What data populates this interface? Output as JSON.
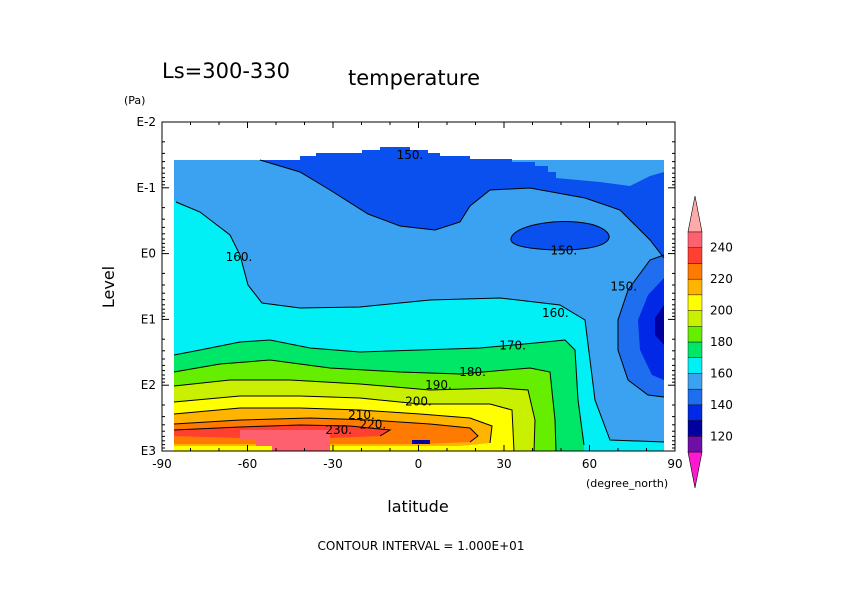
{
  "chart_data": {
    "type": "contour",
    "title": "Ls=300-330",
    "variable": "temperature",
    "xlabel": "latitude",
    "x_unit": "(degree_north)",
    "ylabel": "Level",
    "y_unit": "(Pa)",
    "xlim": [
      -90,
      90
    ],
    "x_ticks": [
      "-90",
      "-60",
      "-30",
      "0",
      "30",
      "60",
      "90"
    ],
    "y_scale": "log",
    "y_ticks": [
      "E-2",
      "E-1",
      "E0",
      "E1",
      "E2",
      "E3"
    ],
    "contour_interval": "CONTOUR INTERVAL = 1.000E+01",
    "contour_labels": [
      {
        "text": "150.",
        "lat": -3,
        "log_p": -1.5
      },
      {
        "text": "150.",
        "lat": 51,
        "log_p": -0.05
      },
      {
        "text": "150.",
        "lat": 72,
        "log_p": 0.5
      },
      {
        "text": "160.",
        "lat": -63,
        "log_p": 0.05
      },
      {
        "text": "160.",
        "lat": 48,
        "log_p": 0.9
      },
      {
        "text": "170.",
        "lat": 33,
        "log_p": 1.4
      },
      {
        "text": "180.",
        "lat": 19,
        "log_p": 1.8
      },
      {
        "text": "190.",
        "lat": 7,
        "log_p": 2.0
      },
      {
        "text": "200.",
        "lat": 0,
        "log_p": 2.25
      },
      {
        "text": "210.",
        "lat": -20,
        "log_p": 2.45
      },
      {
        "text": "220.",
        "lat": -16,
        "log_p": 2.6
      },
      {
        "text": "230.",
        "lat": -28,
        "log_p": 2.68
      }
    ],
    "colorbar": {
      "labels": [
        "120",
        "140",
        "160",
        "180",
        "200",
        "220",
        "240"
      ],
      "bins": [
        {
          "color": "#ff1ad1"
        },
        {
          "color": "#6e0fa8"
        },
        {
          "color": "#0000a0"
        },
        {
          "color": "#0028e6"
        },
        {
          "color": "#1f6ef0"
        },
        {
          "color": "#3aa2f0"
        },
        {
          "color": "#00f0f5"
        },
        {
          "color": "#00e666"
        },
        {
          "color": "#66ee00"
        },
        {
          "color": "#c8f000"
        },
        {
          "color": "#ffff00"
        },
        {
          "color": "#ffb400"
        },
        {
          "color": "#ff7a00"
        },
        {
          "color": "#ff4030"
        },
        {
          "color": "#ff6070"
        },
        {
          "color": "#ffaaaa"
        }
      ]
    }
  }
}
